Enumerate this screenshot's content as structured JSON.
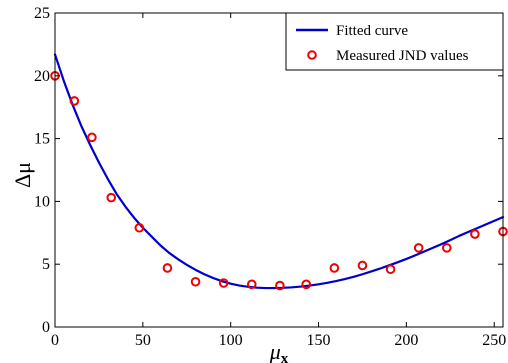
{
  "chart_data": {
    "type": "line",
    "x_label": "μ",
    "x_label_subscript": "x",
    "y_label": "Δμ",
    "xlim": [
      0,
      255
    ],
    "ylim": [
      0,
      25
    ],
    "x_ticks": [
      0,
      50,
      100,
      150,
      200,
      250
    ],
    "y_ticks": [
      0,
      5,
      10,
      15,
      20,
      25
    ],
    "grid": false,
    "legend_position": "top-right",
    "series": [
      {
        "name": "Fitted curve",
        "type": "line",
        "color": "#0000cc",
        "x": [
          0,
          5,
          10,
          15,
          20,
          25,
          30,
          35,
          40,
          45,
          50,
          55,
          60,
          65,
          70,
          75,
          80,
          85,
          90,
          95,
          100,
          105,
          110,
          115,
          120,
          125,
          130,
          135,
          140,
          145,
          150,
          155,
          160,
          165,
          170,
          175,
          180,
          185,
          190,
          195,
          200,
          205,
          210,
          215,
          220,
          225,
          230,
          235,
          240,
          245,
          250,
          255
        ],
        "values": [
          21.7,
          19.6,
          17.7,
          16.0,
          14.5,
          13.1,
          11.8,
          10.6,
          9.6,
          8.7,
          7.9,
          7.2,
          6.5,
          5.9,
          5.4,
          4.95,
          4.55,
          4.2,
          3.9,
          3.65,
          3.45,
          3.3,
          3.2,
          3.13,
          3.1,
          3.1,
          3.12,
          3.16,
          3.22,
          3.3,
          3.4,
          3.52,
          3.66,
          3.82,
          4.0,
          4.2,
          4.42,
          4.65,
          4.9,
          5.15,
          5.42,
          5.7,
          6.0,
          6.3,
          6.6,
          6.92,
          7.25,
          7.55,
          7.85,
          8.15,
          8.45,
          8.75
        ]
      },
      {
        "name": "Measured JND values",
        "type": "scatter",
        "color": "#ee0000",
        "x": [
          0,
          11,
          21,
          32,
          48,
          64,
          80,
          96,
          112,
          128,
          143,
          159,
          175,
          191,
          207,
          223,
          239,
          255
        ],
        "values": [
          20.0,
          18.0,
          15.1,
          10.3,
          7.9,
          4.7,
          3.6,
          3.5,
          3.4,
          3.3,
          3.4,
          4.7,
          4.9,
          4.6,
          6.3,
          6.3,
          7.4,
          7.6
        ]
      }
    ]
  }
}
